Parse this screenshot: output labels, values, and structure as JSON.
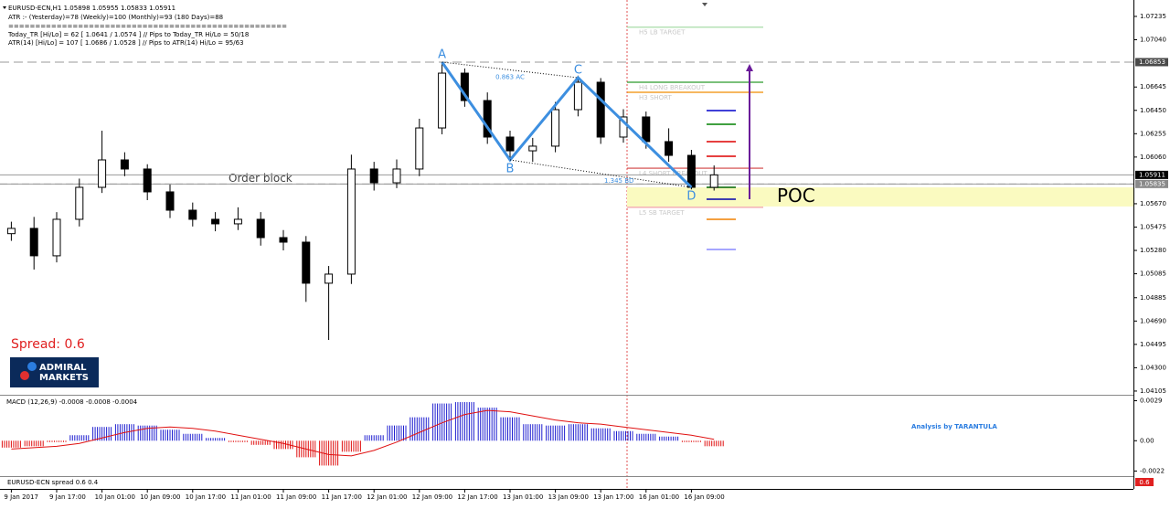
{
  "header": {
    "symbol_line": "EURUSD-ECN,H1  1.05898 1.05955 1.05833 1.05911",
    "atr_line": "ATR :- (Yesterday)=78      (Weekly)=100      (Monthly)=93      (180 Days)=88",
    "separator": "====================================================",
    "today_line": "Today_TR [Hi/Lo] = 62 [ 1.0641 / 1.0574 ]  // Pips to Today_TR Hi/Lo  = 50/18",
    "atr14_line": "ATR(14)      [Hi/Lo] = 107 [ 1.0686 / 1.0528 ]  // Pips to ATR(14) Hi/Lo      = 95/63"
  },
  "spread_label": "Spread:  0.6",
  "logo": [
    "ADMIRAL",
    "MARKETS"
  ],
  "credit": "Analysis by TARANTULA",
  "spread_indicator": "EURUSD-ECN spread 0.6 0.4",
  "spread_badge": "0.6",
  "chart_data": [
    {
      "type": "candlestick",
      "categories": [
        "9 Jan 2017",
        null,
        "9 Jan 17:00",
        null,
        "10 Jan 01:00",
        null,
        "10 Jan 09:00",
        null,
        "10 Jan 17:00",
        null,
        "11 Jan 01:00",
        null,
        "11 Jan 09:00",
        null,
        "11 Jan 17:00",
        null,
        "12 Jan 01:00",
        null,
        "12 Jan 09:00",
        null,
        "12 Jan 17:00",
        null,
        "13 Jan 01:00",
        null,
        "13 Jan 09:00",
        null,
        "13 Jan 17:00",
        null,
        "16 Jan 01:00",
        null,
        "16 Jan 09:00",
        null
      ],
      "open": [
        1.0542,
        1.05464,
        1.05235,
        1.0554,
        1.05807,
        1.06036,
        1.0596,
        1.05769,
        1.05616,
        1.0554,
        1.05502,
        1.0554,
        1.05387,
        1.05349,
        1.05006,
        1.05082,
        1.0596,
        1.05845,
        1.0596,
        1.06303,
        1.06761,
        1.06532,
        1.06227,
        1.06112,
        1.06151,
        1.06456,
        1.06685,
        1.06227,
        1.06395,
        1.06189,
        1.06074,
        1.05807
      ],
      "high": [
        1.0552,
        1.0556,
        1.056,
        1.0588,
        1.0628,
        1.061,
        1.06,
        1.0583,
        1.0568,
        1.056,
        1.0564,
        1.056,
        1.0545,
        1.054,
        1.0515,
        1.0608,
        1.0602,
        1.0604,
        1.0638,
        1.06853,
        1.068,
        1.066,
        1.0628,
        1.0622,
        1.0652,
        1.0674,
        1.0672,
        1.0646,
        1.0644,
        1.063,
        1.0612,
        1.0599
      ],
      "low": [
        1.0536,
        1.0512,
        1.0518,
        1.0548,
        1.0576,
        1.059,
        1.057,
        1.0555,
        1.0548,
        1.0544,
        1.0545,
        1.0532,
        1.0528,
        1.0485,
        1.04532,
        1.05,
        1.0578,
        1.058,
        1.059,
        1.0625,
        1.0648,
        1.0617,
        1.0604,
        1.0602,
        1.061,
        1.064,
        1.0617,
        1.0618,
        1.0613,
        1.0602,
        1.0579,
        1.0578
      ],
      "close": [
        1.05464,
        1.05235,
        1.0554,
        1.05807,
        1.06036,
        1.0596,
        1.05769,
        1.05616,
        1.0554,
        1.05502,
        1.0554,
        1.05387,
        1.05349,
        1.05006,
        1.05082,
        1.0596,
        1.05845,
        1.0596,
        1.06303,
        1.06761,
        1.06532,
        1.06227,
        1.06112,
        1.06151,
        1.06456,
        1.06685,
        1.06227,
        1.06395,
        1.06189,
        1.06074,
        1.05807,
        1.05911
      ],
      "up_color": "#ffffff",
      "down_color": "#000000",
      "ylim": [
        1.04074,
        1.07372
      ],
      "yticks": [
        1.07235,
        {
          "value": 1.0704,
          "label": "1.07040"
        },
        1.06645,
        {
          "value": 1.0645,
          "label": "1.06450"
        },
        1.06255,
        {
          "value": 1.0606,
          "label": "1.06060"
        },
        {
          "value": 1.0567,
          "label": "1.05670"
        },
        1.05475,
        {
          "value": 1.0528,
          "label": "1.05280"
        },
        1.05085,
        1.04885,
        {
          "value": 1.0469,
          "label": "1.04690"
        },
        1.04495,
        {
          "value": 1.043,
          "label": "1.04300"
        },
        1.04105
      ],
      "grid": false,
      "price_markers": [
        {
          "value": 1.06853,
          "color": "#4a4a4a"
        },
        {
          "value": 1.05911,
          "color": "#000000"
        },
        {
          "value": 1.05835,
          "color": "#8a8a8a"
        }
      ],
      "order_block": {
        "label": "Order block",
        "price": 1.05835
      },
      "poc": {
        "label": "POC",
        "from": 1.05647,
        "to": 1.05807,
        "color": "#fafac0"
      },
      "pattern": {
        "color": "#3d8fe0",
        "points": [
          {
            "label": "A",
            "x": 19,
            "price": 1.06853
          },
          {
            "label": "B",
            "x": 22,
            "price": 1.06036
          },
          {
            "label": "C",
            "x": 25,
            "price": 1.06723
          },
          {
            "label": "D",
            "x": 30,
            "price": 1.05807
          }
        ],
        "ratios": [
          "0.863 AC",
          "1.345 BD"
        ]
      },
      "levels": [
        {
          "label": "H5 LB TARGET",
          "price": 1.07145,
          "color": "#a8dca8"
        },
        {
          "label": "H4 LONG BREAKOUT",
          "price": 1.06685,
          "color": "#2a9a2a"
        },
        {
          "label": "H3 SHORT",
          "price": 1.06601,
          "color": "#f08c00"
        },
        {
          "label": "L4 SHORT BREAKOUT",
          "price": 1.05967,
          "color": "#d04040"
        },
        {
          "label": "L5 SB TARGET",
          "price": 1.0564,
          "color": "#f0a0a0"
        }
      ],
      "marks": [
        {
          "price": 1.06448,
          "color": "#0000cc"
        },
        {
          "price": 1.06334,
          "color": "#008000"
        },
        {
          "price": 1.06189,
          "color": "#dd0000"
        },
        {
          "price": 1.06067,
          "color": "#dd0000"
        },
        {
          "price": 1.05807,
          "color": "#006400"
        },
        {
          "price": 1.05708,
          "color": "#0000aa"
        },
        {
          "price": 1.0554,
          "color": "#f08000"
        },
        {
          "price": 1.05288,
          "color": "#8888ff"
        }
      ],
      "arrow": {
        "from": 1.05708,
        "to": 1.06838,
        "color": "#6a1b9a"
      }
    },
    {
      "type": "macd",
      "title": "MACD (12,26,9) -0.0008 -0.0008 -0.0004",
      "values": [
        -0.0005,
        -0.0004,
        -0.0001,
        0.0004,
        0.001,
        0.0012,
        0.0011,
        0.0008,
        0.0005,
        0.0002,
        -0.0001,
        -0.0003,
        -0.0006,
        -0.0012,
        -0.0018,
        -0.0008,
        0.0004,
        0.0011,
        0.0017,
        0.0027,
        0.0028,
        0.0024,
        0.0017,
        0.0012,
        0.0011,
        0.0012,
        0.0009,
        0.0007,
        0.0005,
        0.0003,
        -0.0001,
        -0.0004
      ],
      "signal": [
        -0.0006,
        -0.0005,
        -0.0004,
        -0.0002,
        0.0002,
        0.0006,
        0.0009,
        0.001,
        0.0009,
        0.0007,
        0.0004,
        0.0001,
        -0.0002,
        -0.0006,
        -0.001,
        -0.0011,
        -0.0007,
        -0.0001,
        0.0006,
        0.0013,
        0.0019,
        0.0022,
        0.0021,
        0.0018,
        0.0015,
        0.0013,
        0.0012,
        0.001,
        0.0008,
        0.0006,
        0.0004,
        0.0001
      ],
      "up_color": "#1f1fd0",
      "down_color": "#e01010",
      "signal_color": "#e01010",
      "ylim": [
        -0.0025,
        0.0032
      ],
      "yticks": [
        0.0029,
        {
          "value": 0,
          "label": "0.00"
        },
        -0.0022
      ]
    }
  ]
}
